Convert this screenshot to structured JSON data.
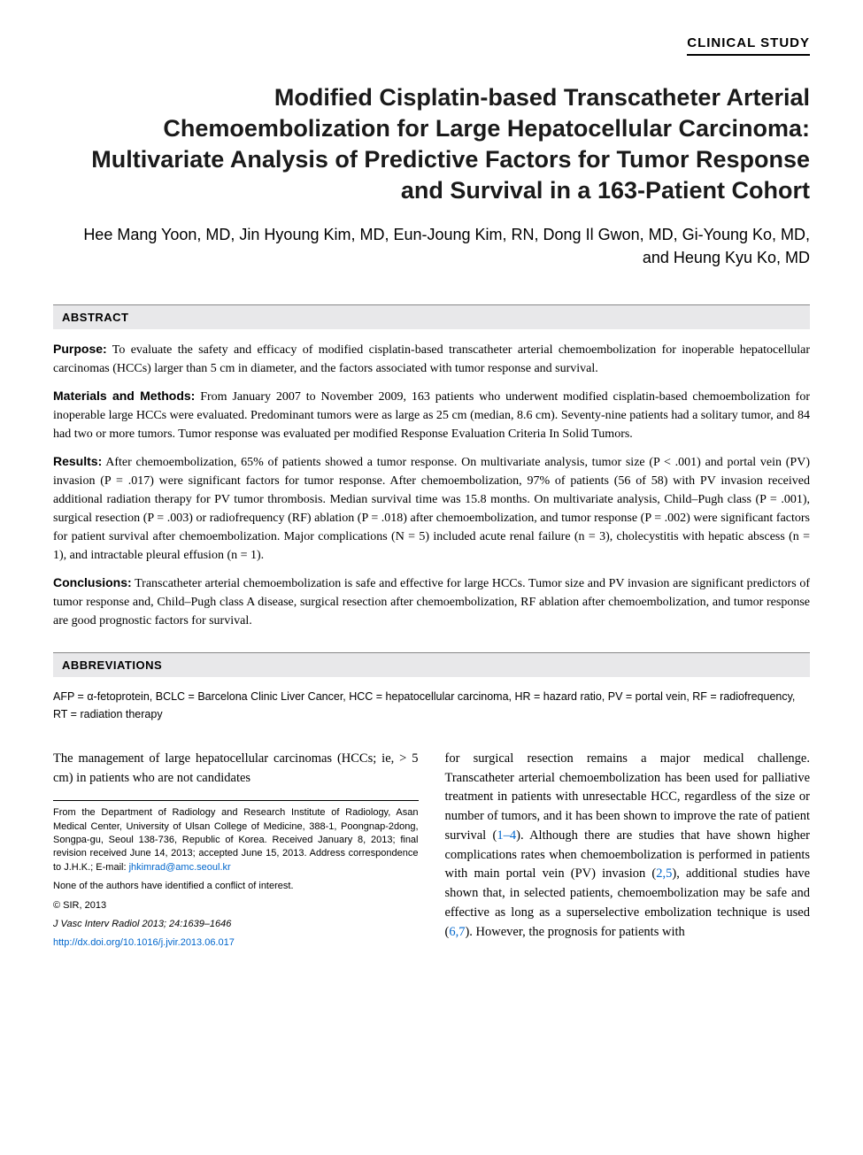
{
  "article_type": "CLINICAL STUDY",
  "title": "Modified Cisplatin-based Transcatheter Arterial Chemoembolization for Large Hepatocellular Carcinoma: Multivariate Analysis of Predictive Factors for Tumor Response and Survival in a 163-Patient Cohort",
  "authors": "Hee Mang Yoon, MD, Jin Hyoung Kim, MD, Eun-Joung Kim, RN, Dong Il Gwon, MD, Gi-Young Ko, MD, and Heung Kyu Ko, MD",
  "abstract_header": "ABSTRACT",
  "abstract": {
    "purpose_label": "Purpose:",
    "purpose_text": " To evaluate the safety and efficacy of modified cisplatin-based transcatheter arterial chemoembolization for inoperable hepatocellular carcinomas (HCCs) larger than 5 cm in diameter, and the factors associated with tumor response and survival.",
    "methods_label": "Materials and Methods:",
    "methods_text": " From January 2007 to November 2009, 163 patients who underwent modified cisplatin-based chemoembolization for inoperable large HCCs were evaluated. Predominant tumors were as large as 25 cm (median, 8.6 cm). Seventy-nine patients had a solitary tumor, and 84 had two or more tumors. Tumor response was evaluated per modified Response Evaluation Criteria In Solid Tumors.",
    "results_label": "Results:",
    "results_text": " After chemoembolization, 65% of patients showed a tumor response. On multivariate analysis, tumor size (P < .001) and portal vein (PV) invasion (P = .017) were significant factors for tumor response. After chemoembolization, 97% of patients (56 of 58) with PV invasion received additional radiation therapy for PV tumor thrombosis. Median survival time was 15.8 months. On multivariate analysis, Child–Pugh class (P = .001), surgical resection (P = .003) or radiofrequency (RF) ablation (P = .018) after chemoembolization, and tumor response (P = .002) were significant factors for patient survival after chemoembolization. Major complications (N = 5) included acute renal failure (n = 3), cholecystitis with hepatic abscess (n = 1), and intractable pleural effusion (n = 1).",
    "conclusions_label": "Conclusions:",
    "conclusions_text": " Transcatheter arterial chemoembolization is safe and effective for large HCCs. Tumor size and PV invasion are significant predictors of tumor response and, Child–Pugh class A disease, surgical resection after chemoembolization, RF ablation after chemoembolization, and tumor response are good prognostic factors for survival."
  },
  "abbrev_header": "ABBREVIATIONS",
  "abbrev_text": "AFP = α-fetoprotein, BCLC = Barcelona Clinic Liver Cancer, HCC = hepatocellular carcinoma, HR = hazard ratio, PV = portal vein, RF = radiofrequency, RT = radiation therapy",
  "body_col1": "The management of large hepatocellular carcinomas (HCCs; ie, > 5 cm) in patients who are not candidates",
  "body_col2_part1": "for surgical resection remains a major medical challenge. Transcatheter arterial chemoembolization has been used for palliative treatment in patients with unresectable HCC, regardless of the size or number of tumors, and it has been shown to improve the rate of patient survival (",
  "body_col2_ref1": "1–4",
  "body_col2_part2": "). Although there are studies that have shown higher complications rates when chemoembolization is performed in patients with main portal vein (PV) invasion (",
  "body_col2_ref2": "2,5",
  "body_col2_part3": "), additional studies have shown that, in selected patients, chemoembolization may be safe and effective as long as a superselective embolization technique is used (",
  "body_col2_ref3": "6,7",
  "body_col2_part4": "). However, the prognosis for patients with",
  "footnotes": {
    "affiliation": "From the Department of Radiology and Research Institute of Radiology, Asan Medical Center, University of Ulsan College of Medicine, 388-1, Poongnap-2dong, Songpa-gu, Seoul 138-736, Republic of Korea. Received January 8, 2013; final revision received June 14, 2013; accepted June 15, 2013. Address correspondence to J.H.K.; E-mail: ",
    "email": "jhkimrad@amc.seoul.kr",
    "conflict": "None of the authors have identified a conflict of interest.",
    "copyright": "© SIR, 2013",
    "citation": "J Vasc Interv Radiol 2013; 24:1639–1646",
    "doi": "http://dx.doi.org/10.1016/j.jvir.2013.06.017"
  }
}
